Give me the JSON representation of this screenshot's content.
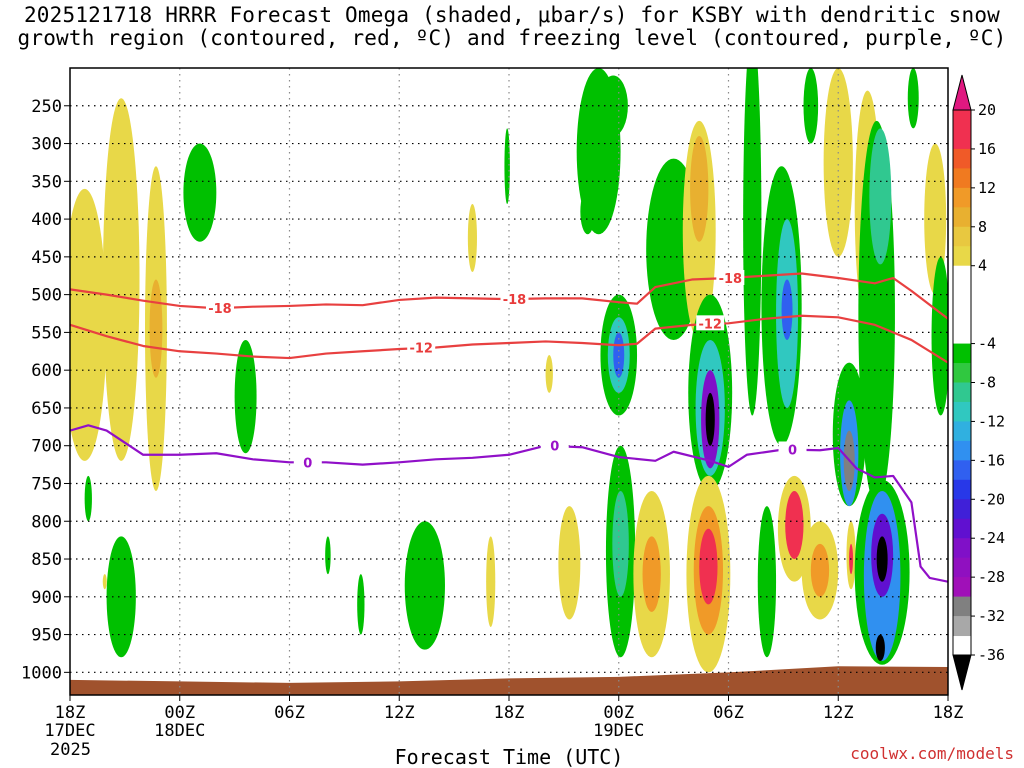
{
  "chart_data": {
    "type": "heatmap",
    "title_line1": "2025121718 HRRR Forecast Omega (shaded, μbar/s) for KSBY with dendritic snow",
    "title_line2": "growth region (contoured, red, ºC) and freezing level (contoured, purple, ºC)",
    "xlabel": "Forecast Time (UTC)",
    "ylabel": "",
    "credit": "coolwx.com/models",
    "x_ticks": [
      {
        "hour": 0,
        "label": "18Z",
        "sub1": "17DEC",
        "sub2": "2025"
      },
      {
        "hour": 6,
        "label": "00Z",
        "sub1": "18DEC",
        "sub2": ""
      },
      {
        "hour": 12,
        "label": "06Z",
        "sub1": "",
        "sub2": ""
      },
      {
        "hour": 18,
        "label": "12Z",
        "sub1": "",
        "sub2": ""
      },
      {
        "hour": 24,
        "label": "18Z",
        "sub1": "",
        "sub2": ""
      },
      {
        "hour": 30,
        "label": "00Z",
        "sub1": "19DEC",
        "sub2": ""
      },
      {
        "hour": 36,
        "label": "06Z",
        "sub1": "",
        "sub2": ""
      },
      {
        "hour": 42,
        "label": "12Z",
        "sub1": "",
        "sub2": ""
      },
      {
        "hour": 48,
        "label": "18Z",
        "sub1": "",
        "sub2": ""
      }
    ],
    "xlim": [
      0,
      48
    ],
    "y_ticks": [
      250,
      300,
      350,
      400,
      450,
      500,
      550,
      600,
      650,
      700,
      750,
      800,
      850,
      900,
      950,
      1000
    ],
    "ylim": [
      1030,
      200
    ],
    "colorbar": {
      "labels": [
        "20",
        "16",
        "12",
        "8",
        "4",
        "-4",
        "-8",
        "-12",
        "-16",
        "-20",
        "-24",
        "-28",
        "-32",
        "-36"
      ],
      "bins": [
        {
          "lo": 16,
          "hi": 20,
          "color": "#f03050"
        },
        {
          "lo": 14,
          "hi": 16,
          "color": "#f05a28"
        },
        {
          "lo": 12,
          "hi": 14,
          "color": "#f07a20"
        },
        {
          "lo": 10,
          "hi": 12,
          "color": "#f09a28"
        },
        {
          "lo": 8,
          "hi": 10,
          "color": "#e8b030"
        },
        {
          "lo": 6,
          "hi": 8,
          "color": "#e8c840"
        },
        {
          "lo": 4,
          "hi": 6,
          "color": "#e8d848"
        },
        {
          "lo": -4,
          "hi": 4,
          "color": "#ffffff"
        },
        {
          "lo": -6,
          "hi": -4,
          "color": "#00c000"
        },
        {
          "lo": -8,
          "hi": -6,
          "color": "#30c840"
        },
        {
          "lo": -10,
          "hi": -8,
          "color": "#30c890"
        },
        {
          "lo": -12,
          "hi": -10,
          "color": "#30c8c0"
        },
        {
          "lo": -14,
          "hi": -12,
          "color": "#30b0e0"
        },
        {
          "lo": -16,
          "hi": -14,
          "color": "#3090f0"
        },
        {
          "lo": -18,
          "hi": -16,
          "color": "#3060f0"
        },
        {
          "lo": -20,
          "hi": -18,
          "color": "#2838e8"
        },
        {
          "lo": -22,
          "hi": -20,
          "color": "#4020d8"
        },
        {
          "lo": -24,
          "hi": -22,
          "color": "#6010d0"
        },
        {
          "lo": -26,
          "hi": -24,
          "color": "#8010c8"
        },
        {
          "lo": -28,
          "hi": -26,
          "color": "#9010c0"
        },
        {
          "lo": -30,
          "hi": -28,
          "color": "#a010b8"
        },
        {
          "lo": -32,
          "hi": -30,
          "color": "#808080"
        },
        {
          "lo": -34,
          "hi": -32,
          "color": "#a8a8a8"
        }
      ],
      "top_arrow_color": "#e01880",
      "bottom_arrow_color": "#000000"
    },
    "contours": [
      {
        "name": "dgz-minus18",
        "value_label": "-18",
        "color": "#e84040",
        "points": [
          [
            0,
            493
          ],
          [
            2,
            500
          ],
          [
            4,
            508
          ],
          [
            6,
            515
          ],
          [
            8,
            518
          ],
          [
            10,
            516
          ],
          [
            12,
            515
          ],
          [
            14,
            513
          ],
          [
            16,
            514
          ],
          [
            18,
            507
          ],
          [
            20,
            504
          ],
          [
            22,
            505
          ],
          [
            24,
            506
          ],
          [
            26,
            505
          ],
          [
            28,
            505
          ],
          [
            30,
            510
          ],
          [
            31,
            512
          ],
          [
            32,
            490
          ],
          [
            34,
            480
          ],
          [
            36,
            478
          ],
          [
            38,
            475
          ],
          [
            40,
            472
          ],
          [
            42,
            478
          ],
          [
            44,
            485
          ],
          [
            45,
            478
          ],
          [
            46,
            495
          ],
          [
            48,
            532
          ]
        ],
        "labels": [
          {
            "hour": 8.2,
            "p": 518
          },
          {
            "hour": 24.3,
            "p": 506
          },
          {
            "hour": 36.1,
            "p": 478
          }
        ]
      },
      {
        "name": "dgz-minus12",
        "value_label": "-12",
        "color": "#e84040",
        "points": [
          [
            0,
            540
          ],
          [
            2,
            555
          ],
          [
            4,
            568
          ],
          [
            6,
            575
          ],
          [
            8,
            578
          ],
          [
            10,
            582
          ],
          [
            12,
            584
          ],
          [
            14,
            578
          ],
          [
            16,
            575
          ],
          [
            18,
            572
          ],
          [
            20,
            570
          ],
          [
            22,
            566
          ],
          [
            24,
            564
          ],
          [
            26,
            562
          ],
          [
            28,
            564
          ],
          [
            30,
            567
          ],
          [
            31,
            565
          ],
          [
            32,
            545
          ],
          [
            34,
            540
          ],
          [
            36,
            538
          ],
          [
            38,
            532
          ],
          [
            40,
            528
          ],
          [
            42,
            530
          ],
          [
            44,
            540
          ],
          [
            46,
            560
          ],
          [
            48,
            590
          ]
        ],
        "labels": [
          {
            "hour": 19.2,
            "p": 570
          },
          {
            "hour": 35,
            "p": 538
          }
        ]
      },
      {
        "name": "freezing-level",
        "value_label": "0",
        "color": "#9010c8",
        "points": [
          [
            0,
            680
          ],
          [
            1,
            673
          ],
          [
            2,
            680
          ],
          [
            4,
            712
          ],
          [
            6,
            712
          ],
          [
            8,
            710
          ],
          [
            10,
            718
          ],
          [
            12,
            722
          ],
          [
            14,
            722
          ],
          [
            16,
            725
          ],
          [
            18,
            722
          ],
          [
            20,
            718
          ],
          [
            22,
            716
          ],
          [
            24,
            712
          ],
          [
            26,
            700
          ],
          [
            28,
            702
          ],
          [
            30,
            715
          ],
          [
            32,
            720
          ],
          [
            33,
            708
          ],
          [
            35,
            720
          ],
          [
            36,
            728
          ],
          [
            37,
            712
          ],
          [
            39,
            705
          ],
          [
            41,
            706
          ],
          [
            42,
            703
          ],
          [
            43,
            730
          ],
          [
            44,
            742
          ],
          [
            45,
            740
          ],
          [
            46,
            775
          ],
          [
            46.5,
            860
          ],
          [
            47,
            875
          ],
          [
            48,
            880
          ]
        ],
        "labels": [
          {
            "hour": 13,
            "p": 722
          },
          {
            "hour": 26.5,
            "p": 700
          },
          {
            "hour": 39.5,
            "p": 705
          }
        ]
      }
    ],
    "omega_features": [
      {
        "hour": 0.8,
        "p1": 360,
        "p2": 720,
        "hw": 1.2,
        "color": "#e8d848"
      },
      {
        "hour": 2.8,
        "p1": 240,
        "p2": 720,
        "hw": 1.0,
        "color": "#e8d848"
      },
      {
        "hour": 4.7,
        "p1": 330,
        "p2": 760,
        "hw": 0.6,
        "color": "#e8d848"
      },
      {
        "hour": 4.7,
        "p1": 480,
        "p2": 610,
        "hw": 0.35,
        "color": "#e8b030"
      },
      {
        "hour": 1.0,
        "p1": 740,
        "p2": 800,
        "hw": 0.2,
        "color": "#00c000"
      },
      {
        "hour": 1.9,
        "p1": 870,
        "p2": 890,
        "hw": 0.1,
        "color": "#e8d848"
      },
      {
        "hour": 2.8,
        "p1": 820,
        "p2": 980,
        "hw": 0.8,
        "color": "#00c000"
      },
      {
        "hour": 7.1,
        "p1": 300,
        "p2": 430,
        "hw": 0.9,
        "color": "#00c000"
      },
      {
        "hour": 9.6,
        "p1": 560,
        "p2": 710,
        "hw": 0.6,
        "color": "#00c000"
      },
      {
        "hour": 14.1,
        "p1": 820,
        "p2": 870,
        "hw": 0.15,
        "color": "#00c000"
      },
      {
        "hour": 15.9,
        "p1": 870,
        "p2": 950,
        "hw": 0.2,
        "color": "#00c000"
      },
      {
        "hour": 19.4,
        "p1": 800,
        "p2": 970,
        "hw": 1.1,
        "color": "#00c000"
      },
      {
        "hour": 22.0,
        "p1": 380,
        "p2": 470,
        "hw": 0.25,
        "color": "#e8d848"
      },
      {
        "hour": 23.0,
        "p1": 820,
        "p2": 940,
        "hw": 0.25,
        "color": "#e8d848"
      },
      {
        "hour": 23.9,
        "p1": 280,
        "p2": 380,
        "hw": 0.15,
        "color": "#00c000"
      },
      {
        "hour": 26.2,
        "p1": 580,
        "p2": 630,
        "hw": 0.2,
        "color": "#e8d848"
      },
      {
        "hour": 27.3,
        "p1": 780,
        "p2": 930,
        "hw": 0.6,
        "color": "#e8d848"
      },
      {
        "hour": 28.3,
        "p1": 360,
        "p2": 420,
        "hw": 0.4,
        "color": "#00c000"
      },
      {
        "hour": 28.9,
        "p1": 200,
        "p2": 420,
        "hw": 1.2,
        "color": "#00c000"
      },
      {
        "hour": 29.7,
        "p1": 210,
        "p2": 290,
        "hw": 0.8,
        "color": "#00c000"
      },
      {
        "hour": 30.0,
        "p1": 500,
        "p2": 660,
        "hw": 1.0,
        "color": "#00c000"
      },
      {
        "hour": 30.0,
        "p1": 530,
        "p2": 630,
        "hw": 0.6,
        "color": "#30c8c0"
      },
      {
        "hour": 30.0,
        "p1": 550,
        "p2": 610,
        "hw": 0.3,
        "color": "#3060f0"
      },
      {
        "hour": 30.1,
        "p1": 700,
        "p2": 980,
        "hw": 0.8,
        "color": "#00c000"
      },
      {
        "hour": 30.1,
        "p1": 760,
        "p2": 900,
        "hw": 0.45,
        "color": "#30c890"
      },
      {
        "hour": 31.8,
        "p1": 760,
        "p2": 980,
        "hw": 1.0,
        "color": "#e8d848"
      },
      {
        "hour": 31.8,
        "p1": 820,
        "p2": 920,
        "hw": 0.5,
        "color": "#f09a28"
      },
      {
        "hour": 33.0,
        "p1": 320,
        "p2": 560,
        "hw": 1.5,
        "color": "#00c000"
      },
      {
        "hour": 34.4,
        "p1": 270,
        "p2": 560,
        "hw": 0.9,
        "color": "#e8d848"
      },
      {
        "hour": 34.4,
        "p1": 290,
        "p2": 430,
        "hw": 0.5,
        "color": "#e8b030"
      },
      {
        "hour": 35.0,
        "p1": 500,
        "p2": 760,
        "hw": 1.2,
        "color": "#00c000"
      },
      {
        "hour": 35.0,
        "p1": 560,
        "p2": 740,
        "hw": 0.8,
        "color": "#30c8c0"
      },
      {
        "hour": 35.0,
        "p1": 600,
        "p2": 730,
        "hw": 0.5,
        "color": "#8010c8"
      },
      {
        "hour": 35.0,
        "p1": 630,
        "p2": 700,
        "hw": 0.25,
        "color": "#000000"
      },
      {
        "hour": 34.9,
        "p1": 740,
        "p2": 1000,
        "hw": 1.2,
        "color": "#e8d848"
      },
      {
        "hour": 34.9,
        "p1": 780,
        "p2": 950,
        "hw": 0.8,
        "color": "#f09a28"
      },
      {
        "hour": 34.9,
        "p1": 810,
        "p2": 910,
        "hw": 0.5,
        "color": "#f03050"
      },
      {
        "hour": 37.3,
        "p1": 150,
        "p2": 660,
        "hw": 0.5,
        "color": "#00c000"
      },
      {
        "hour": 38.1,
        "p1": 780,
        "p2": 980,
        "hw": 0.5,
        "color": "#00c000"
      },
      {
        "hour": 38.9,
        "p1": 330,
        "p2": 700,
        "hw": 1.1,
        "color": "#00c000"
      },
      {
        "hour": 39.2,
        "p1": 400,
        "p2": 650,
        "hw": 0.6,
        "color": "#30c8c0"
      },
      {
        "hour": 39.2,
        "p1": 480,
        "p2": 560,
        "hw": 0.3,
        "color": "#3060f0"
      },
      {
        "hour": 39.6,
        "p1": 740,
        "p2": 880,
        "hw": 0.9,
        "color": "#e8d848"
      },
      {
        "hour": 39.6,
        "p1": 760,
        "p2": 850,
        "hw": 0.5,
        "color": "#f03050"
      },
      {
        "hour": 41.0,
        "p1": 800,
        "p2": 930,
        "hw": 1.0,
        "color": "#e8d848"
      },
      {
        "hour": 41.0,
        "p1": 830,
        "p2": 900,
        "hw": 0.5,
        "color": "#f09a28"
      },
      {
        "hour": 40.5,
        "p1": 200,
        "p2": 300,
        "hw": 0.4,
        "color": "#00c000"
      },
      {
        "hour": 42.0,
        "p1": 200,
        "p2": 450,
        "hw": 0.8,
        "color": "#e8d848"
      },
      {
        "hour": 42.6,
        "p1": 590,
        "p2": 780,
        "hw": 0.9,
        "color": "#00c000"
      },
      {
        "hour": 42.6,
        "p1": 640,
        "p2": 780,
        "hw": 0.5,
        "color": "#3090f0"
      },
      {
        "hour": 42.6,
        "p1": 680,
        "p2": 760,
        "hw": 0.3,
        "color": "#808080"
      },
      {
        "hour": 42.7,
        "p1": 800,
        "p2": 890,
        "hw": 0.25,
        "color": "#e8d848"
      },
      {
        "hour": 42.7,
        "p1": 830,
        "p2": 870,
        "hw": 0.1,
        "color": "#f03050"
      },
      {
        "hour": 43.6,
        "p1": 230,
        "p2": 540,
        "hw": 0.7,
        "color": "#e8d848"
      },
      {
        "hour": 44.1,
        "p1": 270,
        "p2": 780,
        "hw": 1.0,
        "color": "#00c000"
      },
      {
        "hour": 44.3,
        "p1": 280,
        "p2": 460,
        "hw": 0.6,
        "color": "#30c890"
      },
      {
        "hour": 44.4,
        "p1": 745,
        "p2": 990,
        "hw": 1.5,
        "color": "#00c000"
      },
      {
        "hour": 44.4,
        "p1": 760,
        "p2": 985,
        "hw": 1.0,
        "color": "#3090f0"
      },
      {
        "hour": 44.4,
        "p1": 790,
        "p2": 900,
        "hw": 0.6,
        "color": "#6010d0"
      },
      {
        "hour": 44.4,
        "p1": 820,
        "p2": 880,
        "hw": 0.3,
        "color": "#000000"
      },
      {
        "hour": 44.3,
        "p1": 950,
        "p2": 985,
        "hw": 0.25,
        "color": "#000000"
      },
      {
        "hour": 46.1,
        "p1": 200,
        "p2": 280,
        "hw": 0.3,
        "color": "#00c000"
      },
      {
        "hour": 47.3,
        "p1": 300,
        "p2": 500,
        "hw": 0.6,
        "color": "#e8d848"
      },
      {
        "hour": 47.6,
        "p1": 450,
        "p2": 660,
        "hw": 0.5,
        "color": "#00c000"
      }
    ],
    "terrain": {
      "color": "#a0522d",
      "surface": [
        [
          0,
          1010
        ],
        [
          6,
          1012
        ],
        [
          12,
          1014
        ],
        [
          18,
          1012
        ],
        [
          24,
          1008
        ],
        [
          30,
          1006
        ],
        [
          36,
          1000
        ],
        [
          42,
          992
        ],
        [
          48,
          993
        ]
      ]
    }
  }
}
